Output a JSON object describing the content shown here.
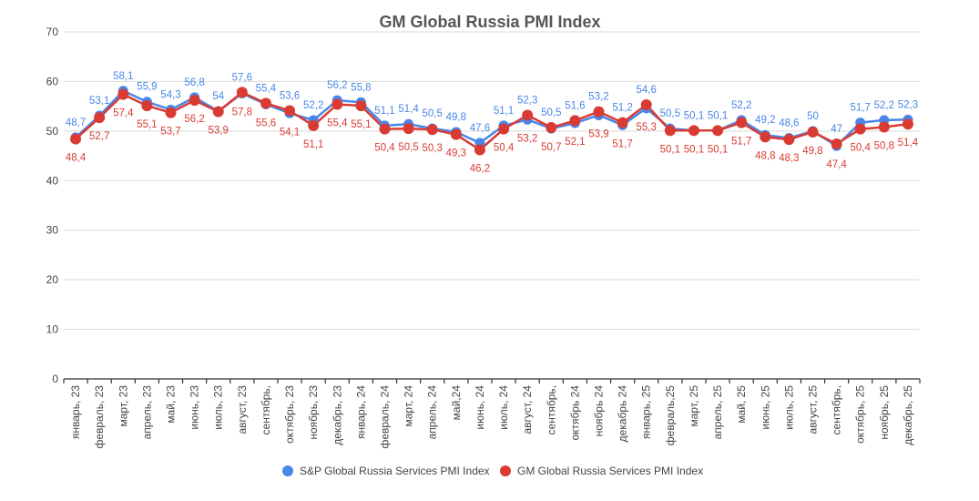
{
  "chart_data": {
    "type": "line",
    "title": "GM Global Russia PMI Index",
    "xlabel": "",
    "ylabel": "",
    "ylim": [
      0,
      70
    ],
    "yticks": [
      0,
      10,
      20,
      30,
      40,
      50,
      60,
      70
    ],
    "grid": true,
    "legend_position": "bottom",
    "categories": [
      "январь, 23",
      "февраль, 23",
      "март, 23",
      "апрель, 23",
      "май, 23",
      "июнь, 23",
      "июль, 23",
      "август, 23",
      "сентябрь,",
      "октябрь, 23",
      "ноябрь, 23",
      "декабрь, 23",
      "январь, 24",
      "февраль, 24",
      "март, 24",
      "апрель, 24",
      "май,24",
      "июнь, 24",
      "июль, 24",
      "август, 24",
      "сентябрь,",
      "октябрь 24",
      "ноябрь 24",
      "декабрь 24",
      "январь, 25",
      "февраль,25",
      "март, 25",
      "апрель, 25",
      "май, 25",
      "июнь, 25",
      "июль, 25",
      "август, 25",
      "сентябрь,",
      "октябрь, 25",
      "ноябрь, 25",
      "декабрь, 25"
    ],
    "series": [
      {
        "name": "S&P Global Russia Services PMI Index",
        "color": "#4a86e8",
        "values": [
          48.7,
          53.1,
          58.1,
          55.9,
          54.3,
          56.8,
          54,
          57.6,
          55.4,
          53.6,
          52.2,
          56.2,
          55.8,
          51.1,
          51.4,
          50.5,
          49.8,
          47.6,
          51.1,
          52.3,
          50.5,
          51.6,
          53.2,
          51.2,
          54.6,
          50.5,
          50.1,
          50.1,
          52.2,
          49.2,
          48.6,
          50,
          47,
          51.7,
          52.2,
          52.3
        ],
        "labels": [
          "48,7",
          "53,1",
          "58,1",
          "55,9",
          "54,3",
          "56,8",
          "54",
          "57,6",
          "55,4",
          "53,6",
          "52,2",
          "56,2",
          "55,8",
          "51,1",
          "51,4",
          "50,5",
          "49,8",
          "47,6",
          "51,1",
          "52,3",
          "50,5",
          "51,6",
          "53,2",
          "51,2",
          "54,6",
          "50,5",
          "50,1",
          "50,1",
          "52,2",
          "49,2",
          "48,6",
          "50",
          "47",
          "51,7",
          "52,2",
          "52,3"
        ]
      },
      {
        "name": "GM Global Russia Services PMI Index",
        "color": "#d93b33",
        "values": [
          48.4,
          52.7,
          57.4,
          55.1,
          53.7,
          56.2,
          53.9,
          57.8,
          55.6,
          54.1,
          51.1,
          55.4,
          55.1,
          50.4,
          50.5,
          50.3,
          49.3,
          46.2,
          50.4,
          53.2,
          50.7,
          52.1,
          53.9,
          51.7,
          55.3,
          50.1,
          50.1,
          50.1,
          51.7,
          48.8,
          48.3,
          49.8,
          47.4,
          50.4,
          50.8,
          51.4
        ],
        "labels": [
          "48,4",
          "52,7",
          "57,4",
          "55,1",
          "53,7",
          "56,2",
          "53,9",
          "57,8",
          "55,6",
          "54,1",
          "51,1",
          "55,4",
          "55,1",
          "50,4",
          "50,5",
          "50,3",
          "49,3",
          "46,2",
          "50,4",
          "53,2",
          "50,7",
          "52,1",
          "53,9",
          "51,7",
          "55,3",
          "50,1",
          "50,1",
          "50,1",
          "51,7",
          "48,8",
          "48,3",
          "49,8",
          "47,4",
          "50,4",
          "50,8",
          "51,4"
        ]
      }
    ]
  }
}
